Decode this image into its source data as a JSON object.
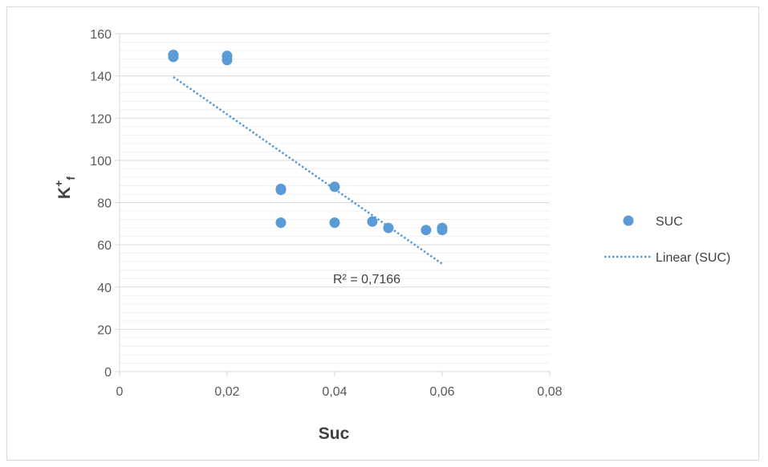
{
  "chart_data": {
    "type": "scatter",
    "title": "",
    "xlabel": "Suc",
    "ylabel": {
      "base": "K",
      "sup": "+",
      "sub": "f"
    },
    "xlim": [
      0,
      0.08
    ],
    "ylim": [
      0,
      160
    ],
    "x_ticks": [
      0,
      0.02,
      0.04,
      0.06,
      0.08
    ],
    "x_tick_labels": [
      "0",
      "0,02",
      "0,04",
      "0,06",
      "0,08"
    ],
    "y_ticks": [
      0,
      20,
      40,
      60,
      80,
      100,
      120,
      140,
      160
    ],
    "y_tick_labels": [
      "0",
      "20",
      "40",
      "60",
      "80",
      "100",
      "120",
      "140",
      "160"
    ],
    "y_minor_step": 4,
    "grid": true,
    "legend_position": "right",
    "series": [
      {
        "name": "SUC",
        "color": "#5b9bd5",
        "marker": "circle",
        "points": [
          {
            "x": 0.01,
            "y": 150
          },
          {
            "x": 0.01,
            "y": 149
          },
          {
            "x": 0.02,
            "y": 149.5
          },
          {
            "x": 0.02,
            "y": 147.5
          },
          {
            "x": 0.03,
            "y": 86.5
          },
          {
            "x": 0.03,
            "y": 86
          },
          {
            "x": 0.03,
            "y": 70.5
          },
          {
            "x": 0.04,
            "y": 87.5
          },
          {
            "x": 0.04,
            "y": 70.5
          },
          {
            "x": 0.047,
            "y": 71
          },
          {
            "x": 0.05,
            "y": 68
          },
          {
            "x": 0.057,
            "y": 67
          },
          {
            "x": 0.06,
            "y": 68
          },
          {
            "x": 0.06,
            "y": 67
          }
        ]
      }
    ],
    "trendline": {
      "name": "Linear (SUC)",
      "type": "linear",
      "color": "#5b9bd5",
      "style": "dotted",
      "points": [
        {
          "x": 0.01,
          "y": 139.5
        },
        {
          "x": 0.06,
          "y": 51
        }
      ],
      "r_squared_label": "R² = 0,7166"
    }
  }
}
